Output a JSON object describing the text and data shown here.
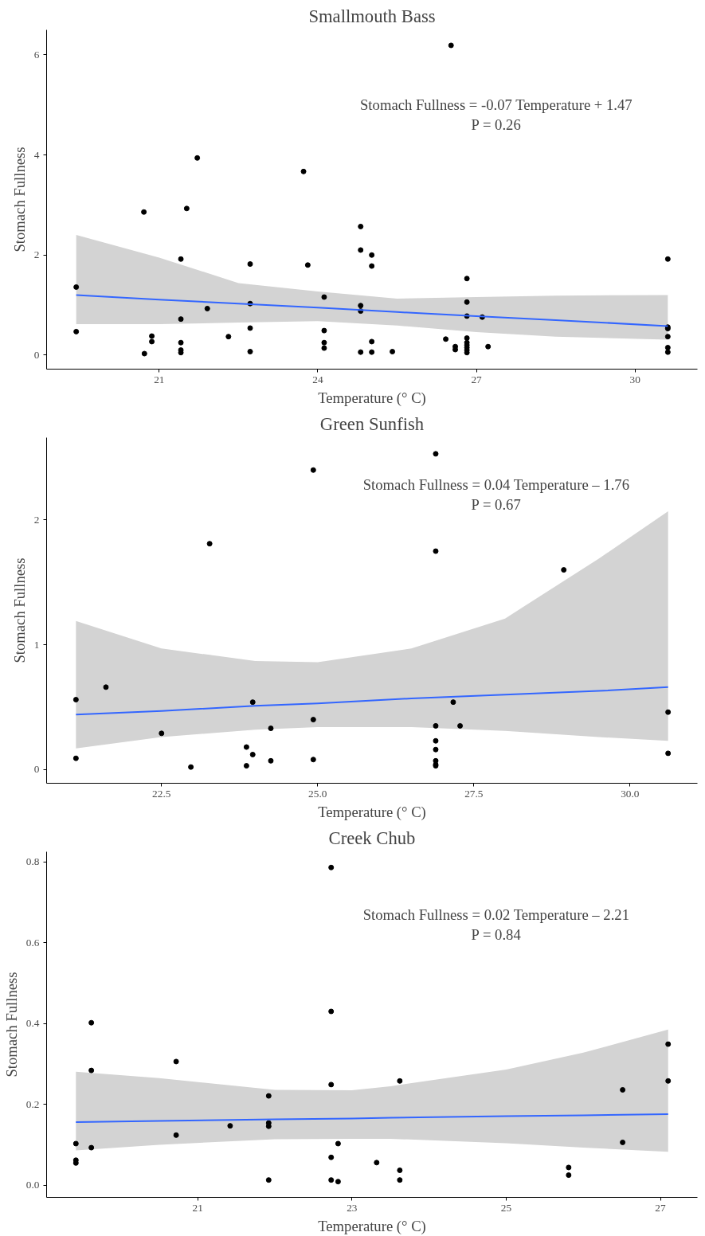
{
  "chart_data": [
    {
      "type": "scatter",
      "title": "Smallmouth Bass",
      "xlabel": "Temperature (° C)",
      "ylabel": "Stomach Fullness",
      "xlim": [
        18.87,
        31.18
      ],
      "ylim": [
        -0.28,
        6.5
      ],
      "xticks": [
        21,
        24,
        27,
        30
      ],
      "yticks": [
        0,
        2,
        4,
        6
      ],
      "annotations": [
        "Stomach Fullness = -0.07 Temperature + 1.47",
        "P = 0.26"
      ],
      "series": [
        {
          "marker": "circle",
          "color": "#000000",
          "x": [
            19.43,
            19.43,
            20.72,
            20.71,
            20.86,
            20.86,
            21.41,
            21.41,
            21.41,
            21.41,
            21.41,
            21.52,
            21.72,
            21.91,
            22.31,
            22.72,
            22.72,
            22.72,
            22.72,
            23.73,
            23.81,
            24.12,
            24.12,
            24.12,
            24.12,
            24.81,
            24.81,
            24.81,
            24.81,
            24.81,
            25.02,
            25.02,
            25.02,
            25.02,
            25.41,
            26.42,
            26.52,
            26.6,
            26.6,
            26.82,
            26.82,
            26.82,
            26.82,
            26.82,
            26.82,
            26.82,
            26.82,
            26.82,
            27.11,
            27.22,
            30.62,
            30.62,
            30.62,
            30.62,
            30.62,
            30.62
          ],
          "values": [
            1.36,
            0.47,
            0.03,
            2.86,
            0.38,
            0.27,
            1.92,
            0.72,
            0.25,
            0.1,
            0.05,
            2.93,
            3.94,
            0.93,
            0.37,
            1.82,
            1.03,
            0.54,
            0.07,
            3.67,
            1.8,
            1.16,
            0.49,
            0.25,
            0.14,
            2.57,
            2.1,
            0.99,
            0.88,
            0.06,
            2.0,
            1.78,
            0.27,
            0.06,
            0.07,
            0.32,
            6.19,
            0.17,
            0.11,
            1.53,
            1.06,
            0.78,
            0.34,
            0.25,
            0.2,
            0.15,
            0.1,
            0.05,
            0.76,
            0.17,
            1.92,
            0.56,
            0.53,
            0.37,
            0.15,
            0.06
          ]
        },
        {
          "type": "line",
          "color": "#3366ff",
          "x": [
            19.43,
            21.0,
            22.5,
            24.0,
            25.5,
            27.0,
            28.5,
            30.62
          ],
          "values": [
            1.2,
            1.11,
            1.03,
            0.95,
            0.86,
            0.78,
            0.7,
            0.58
          ],
          "lower": [
            0.62,
            0.62,
            0.65,
            0.68,
            0.59,
            0.46,
            0.37,
            0.31
          ],
          "upper": [
            2.4,
            1.95,
            1.44,
            1.27,
            1.13,
            1.16,
            1.19,
            1.2
          ]
        }
      ]
    },
    {
      "type": "scatter",
      "title": "Green Sunfish",
      "xlabel": "Temperature (° C)",
      "ylabel": "Stomach Fullness",
      "xlim": [
        20.66,
        31.08
      ],
      "ylim": [
        -0.11,
        2.66
      ],
      "xticks": [
        {
          "value": 22.5,
          "label": "22.5"
        },
        {
          "value": 25,
          "label": "25.0"
        },
        {
          "value": 27.5,
          "label": "27.5"
        },
        {
          "value": 30,
          "label": "30.0"
        }
      ],
      "yticks": [
        0,
        1,
        2
      ],
      "annotations": [
        "Stomach Fullness = 0.04 Temperature – 1.76",
        "P = 0.67"
      ],
      "series": [
        {
          "marker": "circle",
          "color": "#000000",
          "x": [
            21.13,
            21.13,
            21.61,
            22.5,
            22.97,
            23.27,
            23.86,
            23.86,
            23.96,
            23.96,
            24.25,
            24.25,
            24.93,
            24.93,
            24.93,
            26.89,
            26.89,
            26.89,
            26.89,
            26.89,
            26.89,
            26.89,
            26.89,
            27.17,
            27.28,
            28.94,
            30.61,
            30.61
          ],
          "values": [
            0.56,
            0.09,
            0.66,
            0.29,
            0.02,
            1.81,
            0.18,
            0.03,
            0.54,
            0.12,
            0.33,
            0.07,
            2.4,
            0.4,
            0.08,
            2.53,
            1.75,
            0.35,
            0.23,
            0.16,
            0.07,
            0.04,
            0.03,
            0.54,
            0.35,
            1.6,
            0.46,
            0.13
          ]
        },
        {
          "type": "line",
          "color": "#3366ff",
          "x": [
            21.13,
            22.5,
            24.0,
            25.0,
            26.5,
            28.0,
            29.5,
            30.61
          ],
          "values": [
            0.44,
            0.47,
            0.51,
            0.53,
            0.57,
            0.6,
            0.63,
            0.66
          ],
          "lower": [
            0.17,
            0.26,
            0.32,
            0.34,
            0.34,
            0.31,
            0.26,
            0.23
          ],
          "upper": [
            1.19,
            0.97,
            0.87,
            0.86,
            0.97,
            1.21,
            1.69,
            2.07
          ]
        }
      ]
    },
    {
      "type": "scatter",
      "title": "Creek Chub",
      "xlabel": "Temperature (° C)",
      "ylabel": "Stomach Fullness",
      "xlim": [
        19.04,
        27.48
      ],
      "ylim": [
        -0.03,
        0.825
      ],
      "xticks": [
        21,
        23,
        25,
        27
      ],
      "yticks": [
        {
          "value": 0,
          "label": "0.0"
        },
        {
          "value": 0.2,
          "label": "0.2"
        },
        {
          "value": 0.4,
          "label": "0.4"
        },
        {
          "value": 0.6,
          "label": "0.6"
        },
        {
          "value": 0.8,
          "label": "0.8"
        }
      ],
      "annotations": [
        "Stomach Fullness = 0.02 Temperature – 2.21",
        "P = 0.84"
      ],
      "series": [
        {
          "marker": "circle",
          "color": "#000000",
          "x": [
            19.42,
            19.42,
            19.42,
            19.62,
            19.62,
            19.62,
            20.72,
            20.72,
            21.42,
            21.92,
            21.92,
            21.92,
            21.92,
            22.73,
            22.73,
            22.73,
            22.73,
            22.73,
            22.82,
            22.82,
            23.32,
            23.62,
            23.62,
            23.62,
            25.81,
            25.81,
            26.51,
            26.51,
            27.1,
            27.1
          ],
          "values": [
            0.103,
            0.062,
            0.055,
            0.402,
            0.284,
            0.093,
            0.306,
            0.124,
            0.147,
            0.221,
            0.154,
            0.146,
            0.013,
            0.786,
            0.43,
            0.249,
            0.069,
            0.013,
            0.103,
            0.009,
            0.056,
            0.258,
            0.037,
            0.013,
            0.044,
            0.025,
            0.236,
            0.106,
            0.349,
            0.258
          ]
        },
        {
          "type": "line",
          "color": "#3366ff",
          "x": [
            19.42,
            20.5,
            22.0,
            23.0,
            23.5,
            25.0,
            26.0,
            27.1
          ],
          "values": [
            0.156,
            0.159,
            0.163,
            0.165,
            0.167,
            0.171,
            0.173,
            0.176
          ],
          "lower": [
            0.086,
            0.1,
            0.114,
            0.115,
            0.115,
            0.104,
            0.093,
            0.083
          ],
          "upper": [
            0.281,
            0.265,
            0.236,
            0.235,
            0.245,
            0.286,
            0.328,
            0.385
          ]
        }
      ]
    }
  ]
}
